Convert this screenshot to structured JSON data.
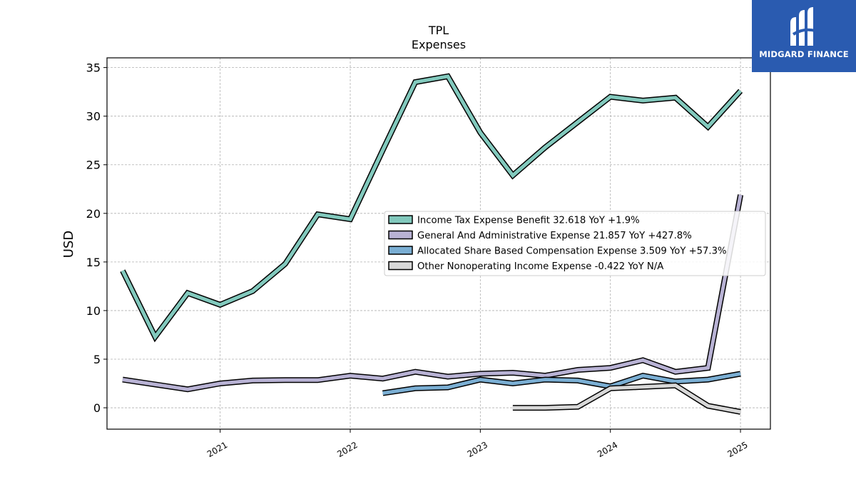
{
  "chart_data": {
    "type": "line",
    "title": "TPL",
    "subtitle": "Expenses",
    "ylabel": "USD",
    "xlabel": "",
    "ylim": [
      -2.2,
      36
    ],
    "xlim": [
      2020.13,
      2025.23
    ],
    "yticks": [
      0,
      5,
      10,
      15,
      20,
      25,
      30,
      35
    ],
    "xticks": [
      {
        "value": 2021,
        "label": "2021"
      },
      {
        "value": 2022,
        "label": "2022"
      },
      {
        "value": 2023,
        "label": "2023"
      },
      {
        "value": 2024,
        "label": "2024"
      },
      {
        "value": 2025,
        "label": "2025"
      }
    ],
    "grid": true,
    "legend_position": "center-right",
    "series": [
      {
        "name": "Income Tax Expense Benefit",
        "legend_label": "Income Tax Expense Benefit  32.618 YoY +1.9%",
        "color": "#82c9bd",
        "x": [
          2020.25,
          2020.5,
          2020.75,
          2021.0,
          2021.25,
          2021.5,
          2021.75,
          2022.0,
          2022.25,
          2022.5,
          2022.75,
          2023.0,
          2023.25,
          2023.5,
          2023.75,
          2024.0,
          2024.25,
          2024.5,
          2024.75,
          2025.0
        ],
        "y": [
          14.1,
          7.3,
          11.8,
          10.6,
          12.0,
          14.8,
          19.9,
          19.4,
          26.5,
          33.5,
          34.1,
          28.3,
          23.9,
          26.8,
          29.4,
          32.0,
          31.6,
          31.9,
          28.9,
          32.6
        ]
      },
      {
        "name": "General And Administrative Expense",
        "legend_label": "General And Administrative Expense  21.857 YoY +427.8%",
        "color": "#b8b2d4",
        "x": [
          2020.25,
          2020.5,
          2020.75,
          2021.0,
          2021.25,
          2021.5,
          2021.75,
          2022.0,
          2022.25,
          2022.5,
          2022.75,
          2023.0,
          2023.25,
          2023.5,
          2023.75,
          2024.0,
          2024.25,
          2024.5,
          2024.75,
          2025.0
        ],
        "y": [
          2.9,
          2.4,
          1.9,
          2.5,
          2.8,
          2.85,
          2.85,
          3.3,
          3.0,
          3.7,
          3.2,
          3.5,
          3.6,
          3.3,
          3.9,
          4.1,
          4.9,
          3.7,
          4.1,
          21.9
        ]
      },
      {
        "name": "Allocated Share Based Compensation Expense",
        "legend_label": "Allocated Share Based Compensation Expense  3.509 YoY +57.3%",
        "color": "#7aaed3",
        "x": [
          2022.25,
          2022.5,
          2022.75,
          2023.0,
          2023.25,
          2023.5,
          2023.75,
          2024.0,
          2024.25,
          2024.5,
          2024.75,
          2025.0
        ],
        "y": [
          1.5,
          2.0,
          2.1,
          2.9,
          2.5,
          2.9,
          2.8,
          2.2,
          3.3,
          2.7,
          2.9,
          3.5
        ]
      },
      {
        "name": "Other Nonoperating Income Expense",
        "legend_label": "Other Nonoperating Income Expense  -0.422 YoY N/A",
        "color": "#d8d8d8",
        "x": [
          2023.25,
          2023.5,
          2023.75,
          2024.0,
          2024.25,
          2024.5,
          2024.75,
          2025.0
        ],
        "y": [
          0.0,
          0.0,
          0.1,
          2.0,
          2.15,
          2.3,
          0.2,
          -0.42
        ]
      }
    ]
  },
  "watermark": {
    "text": "MIDGARD FINANCE",
    "color": "#2a5bb0"
  }
}
